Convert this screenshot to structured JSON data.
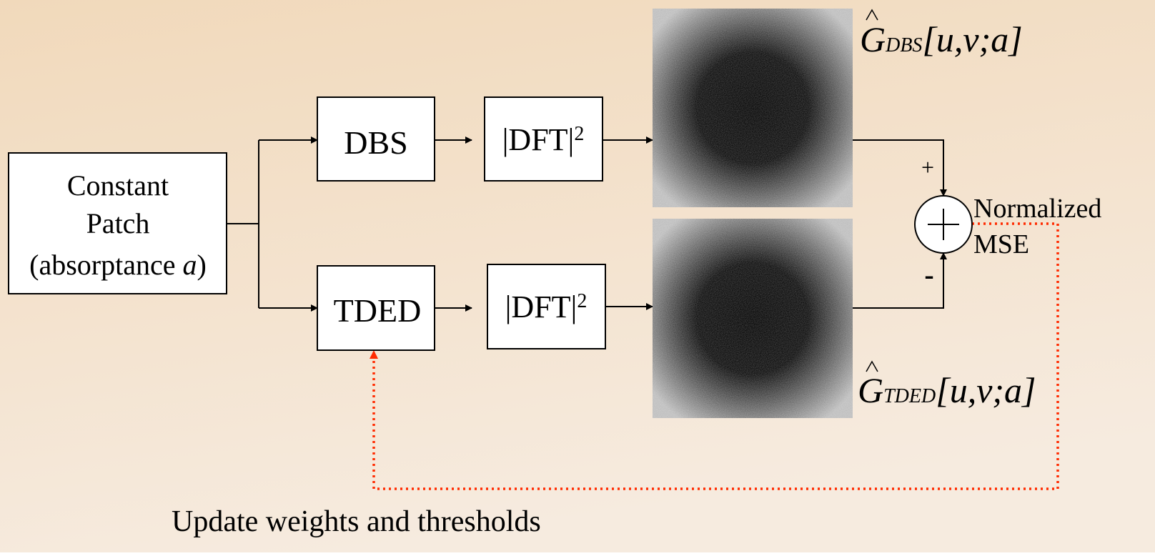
{
  "source": {
    "lines": [
      "Constant",
      "Patch"
    ],
    "last_line": {
      "prefix": "(absorptance ",
      "var": "a",
      "suffix": ")"
    }
  },
  "blocks": {
    "dbs": "DBS",
    "tded": "TDED",
    "dft_top": {
      "base": "|DFT|",
      "exp": "2"
    },
    "dft_bottom": {
      "base": "|DFT|",
      "exp": "2"
    }
  },
  "outputs": [
    {
      "symbol": "G",
      "sub": "DBS",
      "args": "[u,v;a]"
    },
    {
      "symbol": "G",
      "sub": "TDED",
      "args": "[u,v;a]"
    }
  ],
  "summer": {
    "plus": "+",
    "minus": "-",
    "label": [
      "Normalized",
      "MSE"
    ]
  },
  "feedback": "Update weights and thresholds"
}
